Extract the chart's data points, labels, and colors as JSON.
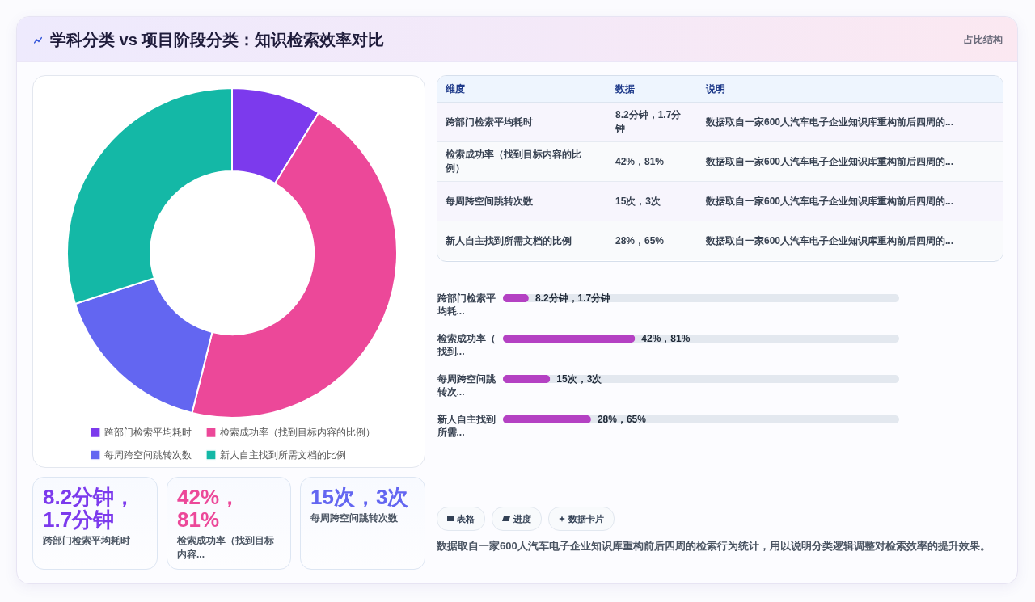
{
  "chart_data": [
    {
      "type": "other",
      "title": "学科分类 vs 项目阶段分类：知识检索效率对比",
      "subtitle": "占比结构"
    },
    {
      "type": "donut",
      "categories": [
        "跨部门检索平均耗时",
        "检索成功率（找到目标内容的比例）",
        "每周跨空间跳转次数",
        "新人自主找到所需文档的比例"
      ],
      "values": [
        8.8,
        45.1,
        16.1,
        30.0
      ],
      "colors": [
        "#7c3aed",
        "#ec4899",
        "#6366f1",
        "#14b8a6"
      ],
      "legend": "bottom"
    },
    {
      "type": "other",
      "annotations": [
        "维度",
        "数据",
        "说明",
        "跨部门检索平均耗时",
        "8.2分钟，1.7分钟",
        "数据取自一家600人汽车电子企业知识库重构前后四周的...",
        "检索成功率（找到目标内容的比例）",
        "42%，81%",
        "数据取自一家600人汽车电子企业知识库重构前后四周的...",
        "每周跨空间跳转次数",
        "15次，3次",
        "数据取自一家600人汽车电子企业知识库重构前后四周的...",
        "新人自主找到所需文档的比例",
        "28%，65%",
        "数据取自一家600人汽车电子企业知识库重构前后四周的..."
      ]
    },
    {
      "type": "bar",
      "orientation": "horizontal",
      "categories": [
        "跨部门检索平均耗...",
        "检索成功率（找到...",
        "每周跨空间跳转次...",
        "新人自主找到所需..."
      ],
      "values": [
        8.2,
        42,
        15,
        28
      ],
      "color": "#b441c3",
      "value_labels": [
        "8.2分钟，1.7分钟",
        "42%，81%",
        "15次，3次",
        "28%，65%"
      ]
    },
    {
      "type": "other",
      "title": "8.2分钟，1.7分钟",
      "subtitle": "跨部门检索平均耗时",
      "color": "#7c3aed"
    },
    {
      "type": "other",
      "title": "42%，81%",
      "subtitle": "检索成功率（找到目标内容...",
      "color": "#ec4899"
    },
    {
      "type": "other",
      "title": "15次，3次",
      "subtitle": "每周跨空间跳转次数",
      "color": "#6366f1"
    },
    {
      "type": "other",
      "annotations": [
        "表格",
        "进度",
        "数据卡片"
      ]
    },
    {
      "type": "other",
      "annotations": [
        "数据取自一家600人汽车电子企业知识库重构前后四周的检索行为统计，用以说明分类逻辑调整对检索效率的提升效果。"
      ]
    }
  ]
}
